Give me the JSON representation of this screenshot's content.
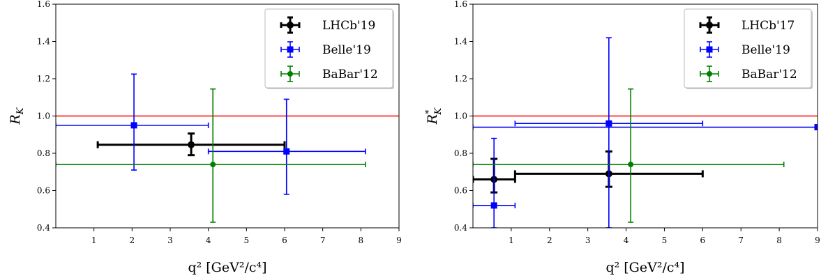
{
  "chart_data": [
    {
      "type": "scatter",
      "xlabel": "q² [GeV²/c⁴]",
      "ylabel": "R_K",
      "ylabel_main": "R",
      "ylabel_sub": "K",
      "ylabel_sup": "",
      "xlim": [
        0,
        9
      ],
      "ylim": [
        0.4,
        1.6
      ],
      "xticks": [
        1,
        2,
        3,
        4,
        5,
        6,
        7,
        8,
        9
      ],
      "yticks": [
        0.4,
        0.6,
        0.8,
        1.0,
        1.2,
        1.4,
        1.6
      ],
      "reference_line": {
        "y": 1.0,
        "color": "#ff0000"
      },
      "legend": {
        "placement": "top-right"
      },
      "series": [
        {
          "name": "LHCb'19",
          "color": "#000000",
          "marker": "circle",
          "bold": true,
          "points": [
            {
              "x": 3.55,
              "xlo": 1.1,
              "xhi": 6.0,
              "y": 0.846,
              "ylo": 0.79,
              "yhi": 0.906
            }
          ]
        },
        {
          "name": "Belle'19",
          "color": "#0000ff",
          "marker": "square",
          "bold": false,
          "points": [
            {
              "x": 2.05,
              "xlo": 0.0,
              "xhi": 4.0,
              "y": 0.95,
              "ylo": 0.71,
              "yhi": 1.225
            },
            {
              "x": 6.05,
              "xlo": 4.0,
              "xhi": 8.12,
              "y": 0.81,
              "ylo": 0.58,
              "yhi": 1.09
            }
          ]
        },
        {
          "name": "BaBar'12",
          "color": "#008000",
          "marker": "circle",
          "bold": false,
          "points": [
            {
              "x": 4.12,
              "xlo": 0.0,
              "xhi": 8.12,
              "y": 0.74,
              "ylo": 0.43,
              "yhi": 1.145
            }
          ]
        }
      ]
    },
    {
      "type": "scatter",
      "xlabel": "q² [GeV²/c⁴]",
      "ylabel": "R*_K",
      "ylabel_main": "R",
      "ylabel_sub": "K",
      "ylabel_sup": "*",
      "xlim": [
        0,
        9
      ],
      "ylim": [
        0.4,
        1.6
      ],
      "xticks": [
        1,
        2,
        3,
        4,
        5,
        6,
        7,
        8,
        9
      ],
      "yticks": [
        0.4,
        0.6,
        0.8,
        1.0,
        1.2,
        1.4,
        1.6
      ],
      "reference_line": {
        "y": 1.0,
        "color": "#ff0000"
      },
      "legend": {
        "placement": "top-right"
      },
      "series": [
        {
          "name": "LHCb'17",
          "color": "#000000",
          "marker": "circle",
          "bold": true,
          "points": [
            {
              "x": 0.55,
              "xlo": 0.0,
              "xhi": 1.1,
              "y": 0.66,
              "ylo": 0.59,
              "yhi": 0.77
            },
            {
              "x": 3.55,
              "xlo": 1.1,
              "xhi": 6.0,
              "y": 0.69,
              "ylo": 0.62,
              "yhi": 0.81
            }
          ]
        },
        {
          "name": "Belle'19",
          "color": "#0000ff",
          "marker": "square",
          "bold": false,
          "points": [
            {
              "x": 0.55,
              "xlo": 0.0,
              "xhi": 1.1,
              "y": 0.52,
              "ylo": 0.4,
              "yhi": 0.88
            },
            {
              "x": 3.55,
              "xlo": 1.1,
              "xhi": 6.0,
              "y": 0.96,
              "ylo": 0.4,
              "yhi": 1.42
            },
            {
              "x": 9.0,
              "xlo": 0.0,
              "xhi": 9.0,
              "y": 0.94,
              "ylo": 0.94,
              "yhi": 0.94
            }
          ]
        },
        {
          "name": "BaBar'12",
          "color": "#008000",
          "marker": "circle",
          "bold": false,
          "points": [
            {
              "x": 4.12,
              "xlo": 0.0,
              "xhi": 8.12,
              "y": 0.74,
              "ylo": 0.43,
              "yhi": 1.145
            }
          ]
        }
      ]
    }
  ]
}
